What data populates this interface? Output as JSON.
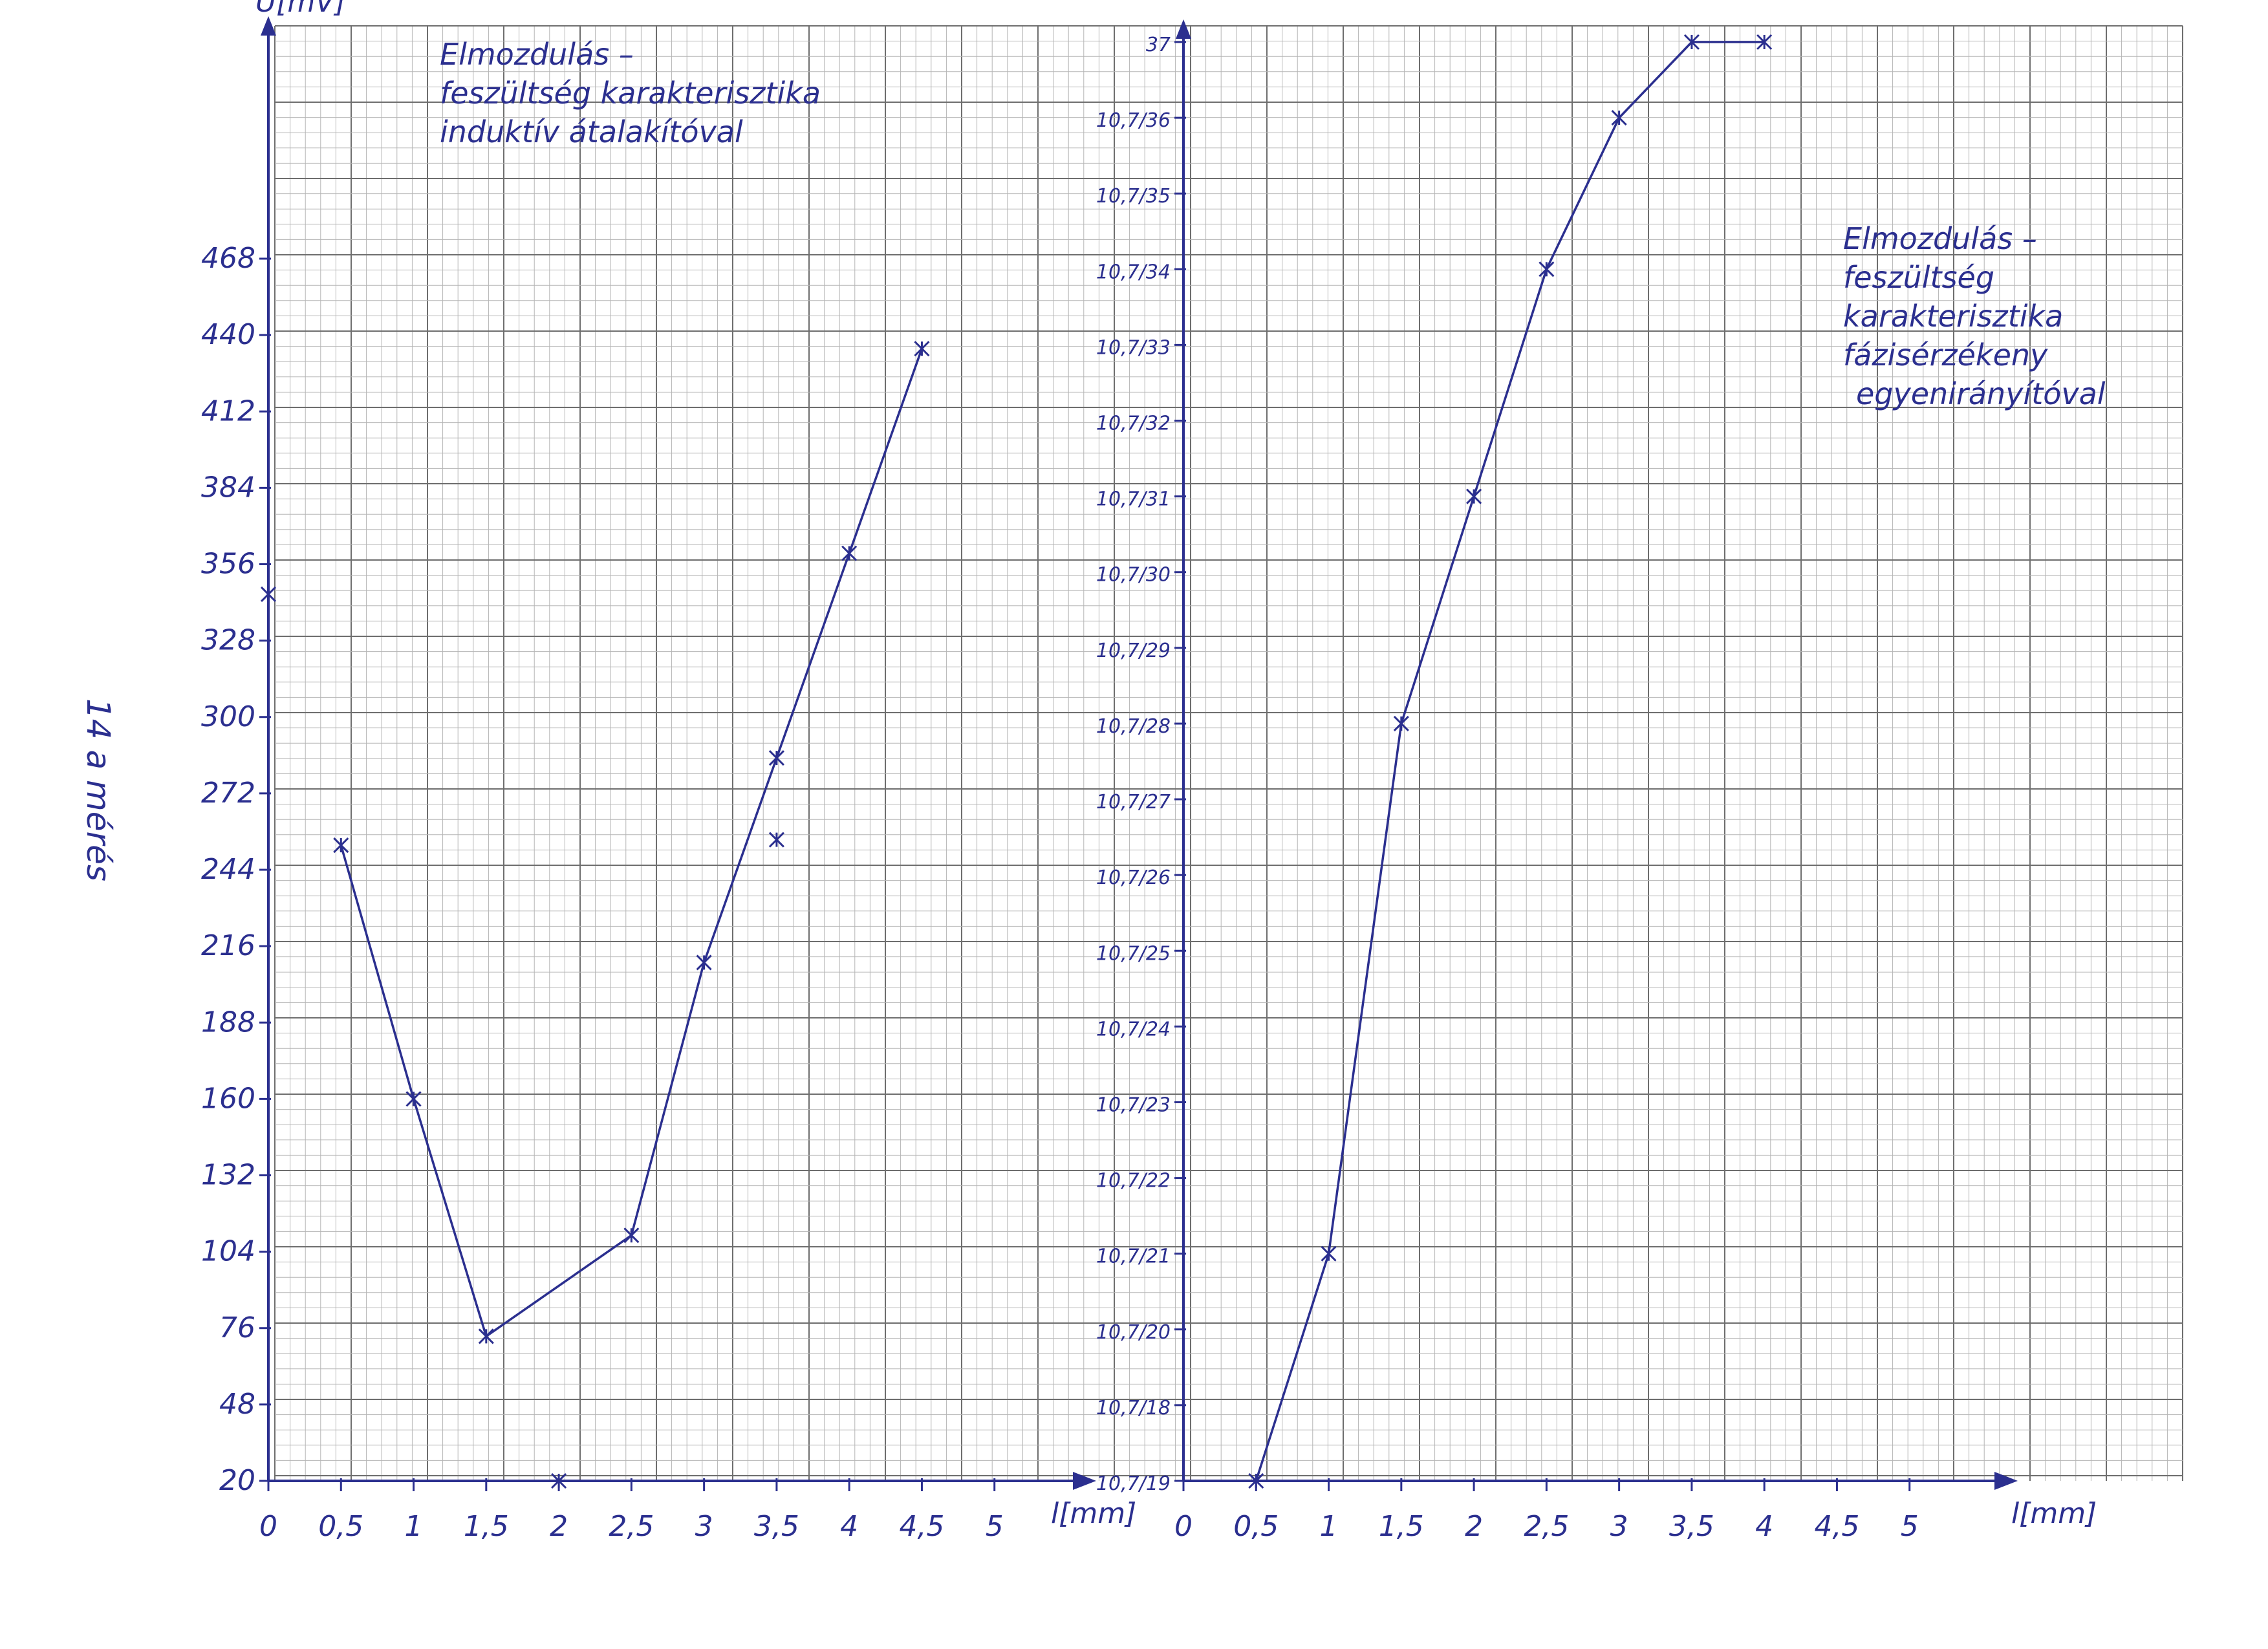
{
  "chart_data": [
    {
      "type": "line",
      "title_lines": [
        "Elmozdulás –",
        "feszültség karakterisztika",
        "induktív átalakítóval"
      ],
      "ylabel": "U[mV]",
      "xlabel": "l[mm]",
      "x_tick_labels": [
        "0",
        "0,5",
        "1",
        "1,5",
        "2",
        "2,5",
        "3",
        "3,5",
        "4",
        "4,5",
        "5"
      ],
      "y_tick_labels": [
        "20",
        "48",
        "76",
        "104",
        "132",
        "160",
        "188",
        "216",
        "244",
        "272",
        "300",
        "328",
        "356",
        "384",
        "412",
        "440",
        "468"
      ],
      "ylim": [
        20,
        468
      ],
      "xlim": [
        0,
        5.5
      ],
      "series": [
        {
          "x": [
            0.5,
            1,
            1.5,
            2.5,
            3,
            3.5,
            4,
            4.5
          ],
          "y": [
            253,
            160,
            73,
            110,
            210,
            285,
            360,
            435
          ]
        }
      ],
      "stray_marks": [
        {
          "x": 2,
          "y": 20
        },
        {
          "x": 3.5,
          "y": 255
        },
        {
          "x": 0,
          "y": 345
        }
      ],
      "grid": true
    },
    {
      "type": "line",
      "title_lines": [
        "Elmozdulás –",
        "feszültség",
        "karakterisztika",
        "fázisérzékeny",
        "egyenirányítóval"
      ],
      "xlabel": "l[mm]",
      "x_tick_labels": [
        "0",
        "0,5",
        "1",
        "1,5",
        "2",
        "2,5",
        "3",
        "3,5",
        "4",
        "4,5",
        "5"
      ],
      "y_tick_labels": [
        "10,7/19",
        "10,7/18",
        "10,7/20",
        "10,7/21",
        "10,7/22",
        "10,7/23",
        "10,7/24",
        "10,7/25",
        "10,7/26",
        "10,7/27",
        "10,7/28",
        "10,7/29",
        "10,7/30",
        "10,7/31",
        "10,7/32",
        "10,7/33",
        "10,7/34",
        "10,7/35",
        "10,7/36",
        "37"
      ],
      "ylim": [
        0,
        19
      ],
      "xlim": [
        0,
        5.5
      ],
      "series": [
        {
          "x": [
            0.5,
            1,
            1.5,
            2,
            2.5,
            3,
            3.5,
            4
          ],
          "y": [
            0,
            3,
            10,
            13,
            16,
            18,
            19,
            19
          ]
        }
      ],
      "grid": true
    }
  ],
  "margin_note": "14 a mérés",
  "ink_color": "#2b2f8f",
  "grid_fine_color": "#b5b5b5",
  "grid_major_color": "#6e6e6e"
}
